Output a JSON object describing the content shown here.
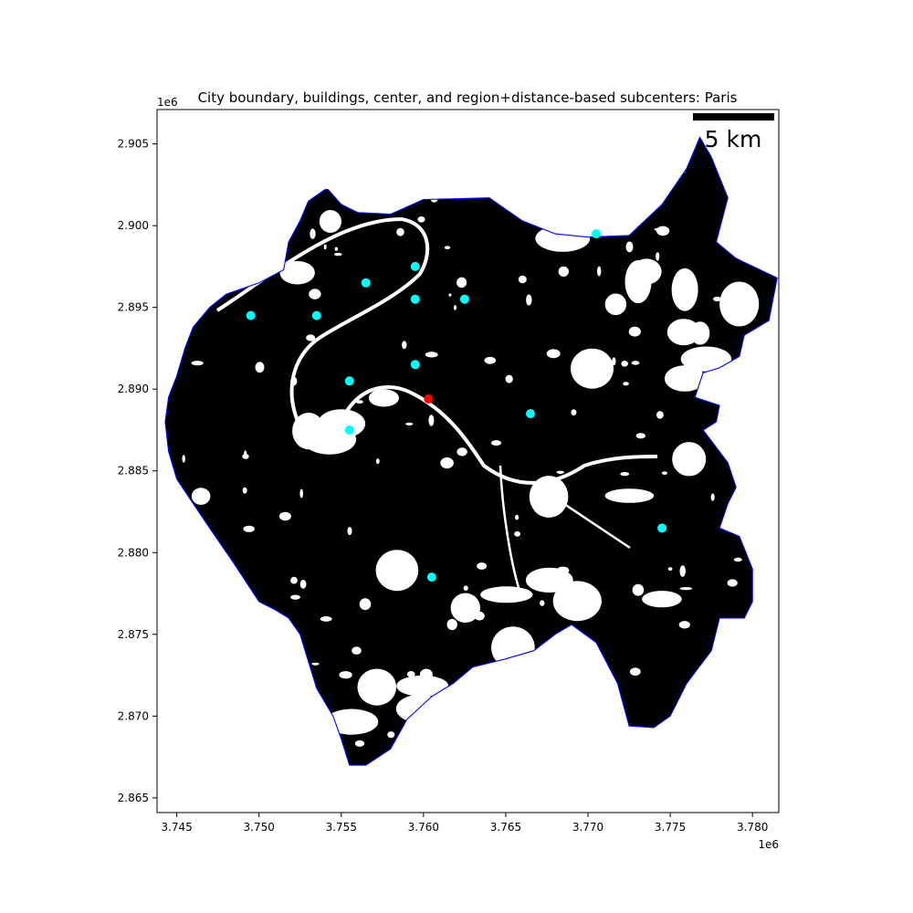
{
  "chart_data": {
    "type": "scatter",
    "title": "City boundary, buildings, center, and region+distance-based subcenters: Paris",
    "xlabel": "",
    "ylabel": "",
    "x_offset_label": "1e6",
    "y_offset_label": "1e6",
    "xlim": [
      3.7438,
      3.7816
    ],
    "ylim": [
      2.8641,
      2.9071
    ],
    "x_ticks": [
      "3.745",
      "3.750",
      "3.755",
      "3.760",
      "3.765",
      "3.770",
      "3.775",
      "3.780"
    ],
    "x_tick_values": [
      3.745,
      3.75,
      3.755,
      3.76,
      3.765,
      3.77,
      3.775,
      3.78
    ],
    "y_ticks": [
      "2.865",
      "2.870",
      "2.875",
      "2.880",
      "2.885",
      "2.890",
      "2.895",
      "2.900",
      "2.905"
    ],
    "y_tick_values": [
      2.865,
      2.87,
      2.875,
      2.88,
      2.885,
      2.89,
      2.895,
      2.9,
      2.905
    ],
    "grid": false,
    "scale_bar_label": "5 km",
    "scale_bar_length": 0.005,
    "boundary_color": "#0000ff",
    "buildings_color": "#000000",
    "center_color": "#ff0000",
    "subcenter_color": "#00ffff",
    "boundary": [
      [
        3.7542,
        2.9022
      ],
      [
        3.755,
        2.9013
      ],
      [
        3.756,
        2.9008
      ],
      [
        3.758,
        2.9007
      ],
      [
        3.76,
        2.9016
      ],
      [
        3.764,
        2.9017
      ],
      [
        3.766,
        2.9003
      ],
      [
        3.768,
        2.8995
      ],
      [
        3.77,
        2.8993
      ],
      [
        3.7725,
        2.8994
      ],
      [
        3.7745,
        2.9013
      ],
      [
        3.776,
        2.9035
      ],
      [
        3.7768,
        2.9054
      ],
      [
        3.7775,
        2.9042
      ],
      [
        3.7785,
        2.9017
      ],
      [
        3.7778,
        2.899
      ],
      [
        3.779,
        2.898
      ],
      [
        3.7815,
        2.8968
      ],
      [
        3.781,
        2.8942
      ],
      [
        3.7795,
        2.8933
      ],
      [
        3.7792,
        2.892
      ],
      [
        3.778,
        2.8913
      ],
      [
        3.777,
        2.891
      ],
      [
        3.7765,
        2.8895
      ],
      [
        3.778,
        2.889
      ],
      [
        3.7778,
        2.888
      ],
      [
        3.777,
        2.8875
      ],
      [
        3.7785,
        2.8855
      ],
      [
        3.779,
        2.884
      ],
      [
        3.7785,
        2.883
      ],
      [
        3.778,
        2.8815
      ],
      [
        3.7792,
        2.881
      ],
      [
        3.78,
        2.879
      ],
      [
        3.78,
        2.877
      ],
      [
        3.7795,
        2.876
      ],
      [
        3.778,
        2.876
      ],
      [
        3.7775,
        2.874
      ],
      [
        3.776,
        2.872
      ],
      [
        3.775,
        2.87
      ],
      [
        3.774,
        2.8693
      ],
      [
        3.7725,
        2.8694
      ],
      [
        3.7718,
        2.872
      ],
      [
        3.7705,
        2.8745
      ],
      [
        3.769,
        2.8756
      ],
      [
        3.768,
        2.875
      ],
      [
        3.7667,
        2.874
      ],
      [
        3.765,
        2.8735
      ],
      [
        3.763,
        2.873
      ],
      [
        3.7618,
        2.872
      ],
      [
        3.7605,
        2.8712
      ],
      [
        3.759,
        2.8698
      ],
      [
        3.758,
        2.868
      ],
      [
        3.7565,
        2.867
      ],
      [
        3.7555,
        2.867
      ],
      [
        3.755,
        2.8686
      ],
      [
        3.7545,
        2.87
      ],
      [
        3.7535,
        2.8717
      ],
      [
        3.7525,
        2.875
      ],
      [
        3.7518,
        2.876
      ],
      [
        3.751,
        2.8765
      ],
      [
        3.75,
        2.877
      ],
      [
        3.7485,
        2.8793
      ],
      [
        3.747,
        2.8815
      ],
      [
        3.746,
        2.883
      ],
      [
        3.745,
        2.8845
      ],
      [
        3.7445,
        2.8862
      ],
      [
        3.7443,
        2.888
      ],
      [
        3.7445,
        2.8895
      ],
      [
        3.745,
        2.8908
      ],
      [
        3.7455,
        2.8925
      ],
      [
        3.746,
        2.8938
      ],
      [
        3.747,
        2.895
      ],
      [
        3.748,
        2.8958
      ],
      [
        3.75,
        2.8965
      ],
      [
        3.7515,
        2.8973
      ],
      [
        3.7518,
        2.899
      ],
      [
        3.7525,
        2.9003
      ],
      [
        3.753,
        2.9015
      ],
      [
        3.754,
        2.9022
      ]
    ],
    "center": {
      "x": 3.7603,
      "y": 2.8894
    },
    "subcenters": [
      {
        "x": 3.7705,
        "y": 2.8995
      },
      {
        "x": 3.7595,
        "y": 2.8975
      },
      {
        "x": 3.7565,
        "y": 2.8965
      },
      {
        "x": 3.7595,
        "y": 2.8955
      },
      {
        "x": 3.7625,
        "y": 2.8955
      },
      {
        "x": 3.7495,
        "y": 2.8945
      },
      {
        "x": 3.7535,
        "y": 2.8945
      },
      {
        "x": 3.7595,
        "y": 2.8915
      },
      {
        "x": 3.7555,
        "y": 2.8905
      },
      {
        "x": 3.7665,
        "y": 2.8885
      },
      {
        "x": 3.7555,
        "y": 2.8875
      },
      {
        "x": 3.7745,
        "y": 2.8815
      },
      {
        "x": 3.7605,
        "y": 2.8785
      }
    ]
  }
}
